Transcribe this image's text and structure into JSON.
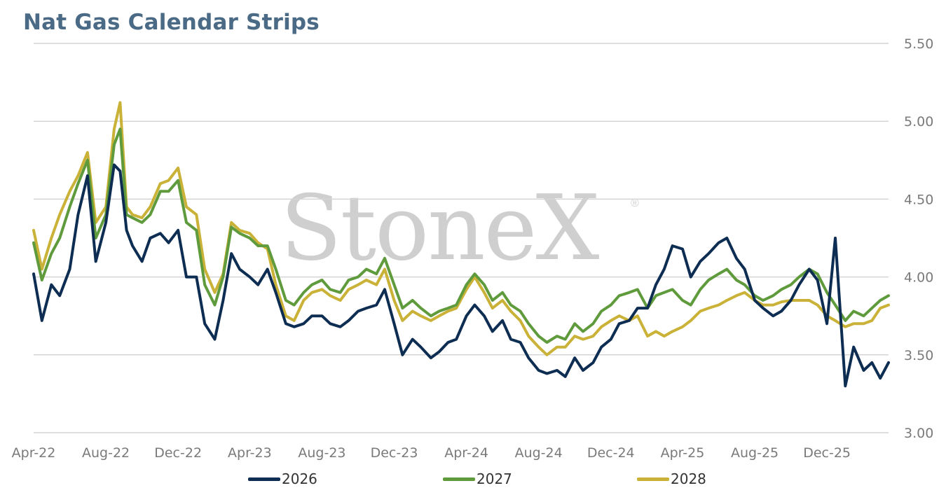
{
  "watermark": "StoneX",
  "watermark_mark": "®",
  "chart_data": {
    "type": "line",
    "title": "Nat Gas Calendar Strips",
    "xlabel": "",
    "ylabel": "",
    "ylim": [
      3.0,
      5.5
    ],
    "yticks": [
      "3.00",
      "3.50",
      "4.00",
      "4.50",
      "5.00",
      "5.50"
    ],
    "y_axis_side": "right",
    "grid": "horizontal",
    "legend_position": "bottom",
    "x_range": [
      "2022-04-01",
      "2026-03-15"
    ],
    "xticks": [
      {
        "date": "2022-04-01",
        "label": "Apr-22"
      },
      {
        "date": "2022-08-01",
        "label": "Aug-22"
      },
      {
        "date": "2022-12-01",
        "label": "Dec-22"
      },
      {
        "date": "2023-04-01",
        "label": "Apr-23"
      },
      {
        "date": "2023-08-01",
        "label": "Aug-23"
      },
      {
        "date": "2023-12-01",
        "label": "Dec-23"
      },
      {
        "date": "2024-04-01",
        "label": "Apr-24"
      },
      {
        "date": "2024-08-01",
        "label": "Aug-24"
      },
      {
        "date": "2024-12-01",
        "label": "Dec-24"
      },
      {
        "date": "2025-04-01",
        "label": "Apr-25"
      },
      {
        "date": "2025-08-01",
        "label": "Aug-25"
      },
      {
        "date": "2025-12-01",
        "label": "Dec-25"
      }
    ],
    "x": [
      "2022-04-01",
      "2022-04-15",
      "2022-05-01",
      "2022-05-15",
      "2022-06-01",
      "2022-06-15",
      "2022-07-01",
      "2022-07-15",
      "2022-08-01",
      "2022-08-15",
      "2022-08-25",
      "2022-09-05",
      "2022-09-15",
      "2022-10-01",
      "2022-10-15",
      "2022-11-01",
      "2022-11-15",
      "2022-12-01",
      "2022-12-15",
      "2023-01-01",
      "2023-01-15",
      "2023-02-01",
      "2023-02-15",
      "2023-03-01",
      "2023-03-15",
      "2023-04-01",
      "2023-04-15",
      "2023-05-01",
      "2023-05-15",
      "2023-06-01",
      "2023-06-15",
      "2023-07-01",
      "2023-07-15",
      "2023-08-01",
      "2023-08-15",
      "2023-09-01",
      "2023-09-15",
      "2023-10-01",
      "2023-10-15",
      "2023-11-01",
      "2023-11-15",
      "2023-12-01",
      "2023-12-15",
      "2024-01-01",
      "2024-01-15",
      "2024-02-01",
      "2024-02-15",
      "2024-03-01",
      "2024-03-15",
      "2024-04-01",
      "2024-04-15",
      "2024-05-01",
      "2024-05-15",
      "2024-06-01",
      "2024-06-15",
      "2024-07-01",
      "2024-07-15",
      "2024-08-01",
      "2024-08-15",
      "2024-09-01",
      "2024-09-15",
      "2024-10-01",
      "2024-10-15",
      "2024-11-01",
      "2024-11-15",
      "2024-12-01",
      "2024-12-15",
      "2025-01-01",
      "2025-01-15",
      "2025-02-01",
      "2025-02-15",
      "2025-03-01",
      "2025-03-15",
      "2025-04-01",
      "2025-04-15",
      "2025-05-01",
      "2025-05-15",
      "2025-06-01",
      "2025-06-15",
      "2025-07-01",
      "2025-07-15",
      "2025-08-01",
      "2025-08-15",
      "2025-09-01",
      "2025-09-15",
      "2025-10-01",
      "2025-10-15",
      "2025-11-01",
      "2025-11-15",
      "2025-12-01",
      "2025-12-15",
      "2026-01-01",
      "2026-01-15",
      "2026-02-01",
      "2026-02-15",
      "2026-03-01",
      "2026-03-15"
    ],
    "series": [
      {
        "name": "2026",
        "color": "#0e2d52",
        "values": [
          4.02,
          3.72,
          3.95,
          3.88,
          4.05,
          4.4,
          4.65,
          4.1,
          4.35,
          4.72,
          4.68,
          4.3,
          4.2,
          4.1,
          4.25,
          4.28,
          4.22,
          4.3,
          4.0,
          4.0,
          3.7,
          3.6,
          3.85,
          4.15,
          4.05,
          4.0,
          3.95,
          4.05,
          3.9,
          3.7,
          3.68,
          3.7,
          3.75,
          3.75,
          3.7,
          3.68,
          3.72,
          3.78,
          3.8,
          3.82,
          3.92,
          3.7,
          3.5,
          3.6,
          3.55,
          3.48,
          3.52,
          3.58,
          3.6,
          3.75,
          3.82,
          3.75,
          3.65,
          3.72,
          3.6,
          3.58,
          3.48,
          3.4,
          3.38,
          3.4,
          3.36,
          3.48,
          3.4,
          3.45,
          3.55,
          3.6,
          3.7,
          3.72,
          3.8,
          3.8,
          3.95,
          4.05,
          4.2,
          4.18,
          4.0,
          4.1,
          4.15,
          4.22,
          4.25,
          4.12,
          4.05,
          3.85,
          3.8,
          3.75,
          3.78,
          3.85,
          3.95,
          4.05,
          3.98,
          3.7,
          4.25,
          3.3,
          3.55,
          3.4,
          3.45,
          3.35,
          3.45
        ]
      },
      {
        "name": "2027",
        "color": "#5f9b3c",
        "values": [
          4.22,
          3.98,
          4.15,
          4.25,
          4.45,
          4.6,
          4.75,
          4.25,
          4.4,
          4.85,
          4.95,
          4.4,
          4.38,
          4.35,
          4.4,
          4.55,
          4.55,
          4.62,
          4.35,
          4.3,
          3.95,
          3.82,
          4.0,
          4.32,
          4.28,
          4.25,
          4.2,
          4.2,
          4.05,
          3.85,
          3.82,
          3.9,
          3.95,
          3.98,
          3.92,
          3.9,
          3.98,
          4.0,
          4.05,
          4.02,
          4.12,
          3.95,
          3.8,
          3.85,
          3.8,
          3.75,
          3.78,
          3.8,
          3.82,
          3.95,
          4.02,
          3.95,
          3.85,
          3.9,
          3.82,
          3.78,
          3.7,
          3.62,
          3.58,
          3.62,
          3.6,
          3.7,
          3.65,
          3.7,
          3.78,
          3.82,
          3.88,
          3.9,
          3.92,
          3.8,
          3.88,
          3.9,
          3.92,
          3.85,
          3.82,
          3.92,
          3.98,
          4.02,
          4.05,
          3.98,
          3.95,
          3.88,
          3.85,
          3.88,
          3.92,
          3.95,
          4.0,
          4.05,
          4.02,
          3.9,
          3.82,
          3.72,
          3.78,
          3.75,
          3.8,
          3.85,
          3.88
        ]
      },
      {
        "name": "2028",
        "color": "#c9b237",
        "values": [
          4.3,
          4.05,
          4.25,
          4.4,
          4.55,
          4.65,
          4.8,
          4.35,
          4.45,
          4.95,
          5.12,
          4.45,
          4.4,
          4.38,
          4.45,
          4.6,
          4.62,
          4.7,
          4.45,
          4.4,
          4.05,
          3.9,
          4.02,
          4.35,
          4.3,
          4.28,
          4.22,
          4.18,
          3.95,
          3.75,
          3.72,
          3.85,
          3.9,
          3.92,
          3.88,
          3.85,
          3.92,
          3.95,
          3.98,
          3.95,
          4.05,
          3.85,
          3.72,
          3.78,
          3.75,
          3.72,
          3.75,
          3.78,
          3.8,
          3.92,
          4.0,
          3.9,
          3.8,
          3.85,
          3.78,
          3.72,
          3.62,
          3.55,
          3.5,
          3.55,
          3.55,
          3.62,
          3.6,
          3.62,
          3.68,
          3.72,
          3.75,
          3.72,
          3.75,
          3.62,
          3.65,
          3.62,
          3.65,
          3.68,
          3.72,
          3.78,
          3.8,
          3.82,
          3.85,
          3.88,
          3.9,
          3.85,
          3.82,
          3.82,
          3.84,
          3.85,
          3.85,
          3.85,
          3.82,
          3.75,
          3.72,
          3.68,
          3.7,
          3.7,
          3.72,
          3.8,
          3.82
        ]
      }
    ]
  }
}
